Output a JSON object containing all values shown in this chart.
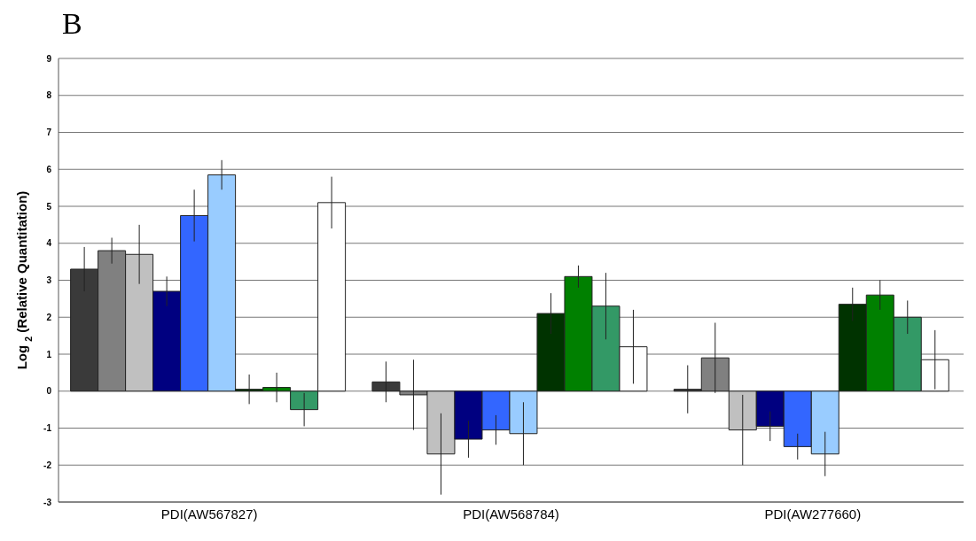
{
  "chart_data": {
    "type": "bar",
    "title": "B",
    "ylabel": "Log $_{2}$ (Relative Quantitation)",
    "categories": [
      "PDI(AW567827)",
      "PDI(AW568784)",
      "PDI(AW277660)"
    ],
    "series": [
      {
        "color": "#3a3a3a",
        "values": [
          3.3,
          0.25,
          0.05
        ],
        "errors": [
          0.6,
          0.55,
          0.65
        ]
      },
      {
        "color": "#808080",
        "values": [
          3.8,
          -0.1,
          0.9
        ],
        "errors": [
          0.35,
          0.95,
          0.95
        ]
      },
      {
        "color": "#c0c0c0",
        "values": [
          3.7,
          -1.7,
          -1.05
        ],
        "errors": [
          0.8,
          1.1,
          0.95
        ]
      },
      {
        "color": "#000080",
        "values": [
          2.7,
          -1.3,
          -0.95
        ],
        "errors": [
          0.4,
          0.5,
          0.4
        ]
      },
      {
        "color": "#3366ff",
        "values": [
          4.75,
          -1.05,
          -1.5
        ],
        "errors": [
          0.7,
          0.4,
          0.35
        ]
      },
      {
        "color": "#99ccff",
        "values": [
          5.85,
          -1.15,
          -1.7
        ],
        "errors": [
          0.4,
          0.85,
          0.6
        ]
      },
      {
        "color": "#003300",
        "values": [
          0.05,
          2.1,
          2.35
        ],
        "errors": [
          0.4,
          0.55,
          0.45
        ]
      },
      {
        "color": "#008000",
        "values": [
          0.1,
          3.1,
          2.6
        ],
        "errors": [
          0.4,
          0.3,
          0.4
        ]
      },
      {
        "color": "#339966",
        "values": [
          -0.5,
          2.3,
          2.0
        ],
        "errors": [
          0.45,
          0.9,
          0.45
        ]
      },
      {
        "color": "#ffffff",
        "values": [
          5.1,
          1.2,
          0.85
        ],
        "errors": [
          0.7,
          1.0,
          0.8
        ]
      }
    ],
    "ylim": [
      -3,
      9
    ],
    "yticks": [
      -3,
      -2,
      -1,
      0,
      1,
      2,
      3,
      4,
      5,
      6,
      7,
      8,
      9
    ],
    "grid": "y",
    "legend": false
  }
}
